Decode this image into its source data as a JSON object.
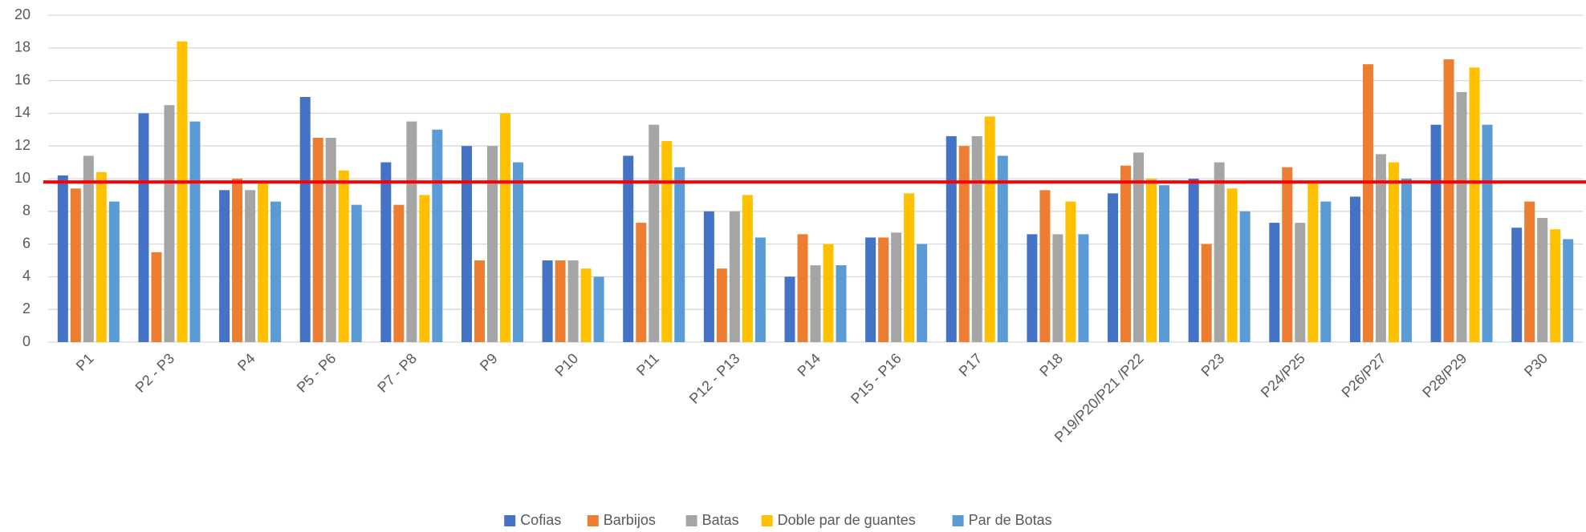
{
  "chart_data": {
    "type": "bar",
    "categories": [
      "P1",
      "P2 - P3",
      "P4",
      "P5 - P6",
      "P7 - P8",
      "P9",
      "P10",
      "P11",
      "P12 - P13",
      "P14",
      "P15 - P16",
      "P17",
      "P18",
      "P19/P20/P21 /P22",
      "P23",
      "P24/P25",
      "P26/P27",
      "P28/P29",
      "P30"
    ],
    "series": [
      {
        "name": "Cofias",
        "color": "#4472c4",
        "values": [
          10.2,
          14,
          9.3,
          15,
          11,
          12,
          5,
          11.4,
          8,
          4,
          6.4,
          12.6,
          6.6,
          9.1,
          10,
          7.3,
          8.9,
          13.3,
          7
        ]
      },
      {
        "name": "Barbijos",
        "color": "#ed7d31",
        "values": [
          9.4,
          5.5,
          10,
          12.5,
          8.4,
          5,
          5,
          7.3,
          4.5,
          6.6,
          6.4,
          12,
          9.3,
          10.8,
          6,
          10.7,
          17,
          17.3,
          8.6
        ]
      },
      {
        "name": "Batas",
        "color": "#a5a5a5",
        "values": [
          11.4,
          14.5,
          9.3,
          12.5,
          13.5,
          12,
          5,
          13.3,
          8,
          4.7,
          6.7,
          12.6,
          6.6,
          11.6,
          11,
          7.3,
          11.5,
          15.3,
          7.6
        ]
      },
      {
        "name": "Doble par de guantes",
        "color": "#ffc000",
        "values": [
          10.4,
          18.4,
          9.7,
          10.5,
          9,
          14,
          4.5,
          12.3,
          9,
          6,
          9.1,
          13.8,
          8.6,
          10,
          9.4,
          9.7,
          11,
          16.8,
          6.9
        ]
      },
      {
        "name": "Par de Botas",
        "color": "#5b9bd5",
        "values": [
          8.6,
          13.5,
          8.6,
          8.4,
          13,
          11,
          4,
          10.7,
          6.4,
          4.7,
          6,
          11.4,
          6.6,
          9.6,
          8,
          8.6,
          10,
          13.3,
          6.3
        ]
      }
    ],
    "reference_line": {
      "value": 9.8,
      "color": "#ff0000"
    },
    "ylim": [
      0,
      20
    ],
    "yticks": [
      0,
      2,
      4,
      6,
      8,
      10,
      12,
      14,
      16,
      18,
      20
    ],
    "grid": true,
    "legend": "bottom"
  }
}
